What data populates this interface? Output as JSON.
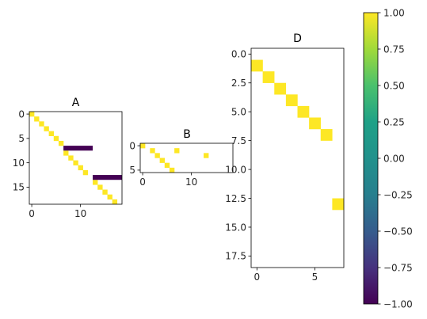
{
  "chart_data": [
    {
      "type": "heatmap",
      "title": "A",
      "nrows": 19,
      "ncols": 19,
      "value_range": [
        -1,
        1
      ],
      "cells": [
        {
          "row": 0,
          "col": 0,
          "value": 1
        },
        {
          "row": 1,
          "col": 1,
          "value": 1
        },
        {
          "row": 2,
          "col": 2,
          "value": 1
        },
        {
          "row": 3,
          "col": 3,
          "value": 1
        },
        {
          "row": 4,
          "col": 4,
          "value": 1
        },
        {
          "row": 5,
          "col": 5,
          "value": 1
        },
        {
          "row": 6,
          "col": 6,
          "value": 1
        },
        {
          "row": 8,
          "col": 7,
          "value": 1
        },
        {
          "row": 9,
          "col": 8,
          "value": 1
        },
        {
          "row": 10,
          "col": 9,
          "value": 1
        },
        {
          "row": 11,
          "col": 10,
          "value": 1
        },
        {
          "row": 12,
          "col": 11,
          "value": 1
        },
        {
          "row": 14,
          "col": 13,
          "value": 1
        },
        {
          "row": 15,
          "col": 14,
          "value": 1
        },
        {
          "row": 16,
          "col": 15,
          "value": 1
        },
        {
          "row": 17,
          "col": 16,
          "value": 1
        },
        {
          "row": 18,
          "col": 17,
          "value": 1
        }
      ],
      "bars": [
        {
          "row": 7,
          "col_start": 7,
          "col_end": 12,
          "value": -1
        },
        {
          "row": 13,
          "col_start": 13,
          "col_end": 18,
          "value": -1
        }
      ],
      "xticks": [
        0,
        10
      ],
      "yticks": [
        0,
        5,
        10,
        15
      ]
    },
    {
      "type": "heatmap",
      "title": "B",
      "nrows": 6,
      "ncols": 19,
      "value_range": [
        -1,
        1
      ],
      "cells": [
        {
          "row": 0,
          "col": 0,
          "value": 1
        },
        {
          "row": 1,
          "col": 2,
          "value": 1
        },
        {
          "row": 2,
          "col": 3,
          "value": 1
        },
        {
          "row": 3,
          "col": 4,
          "value": 1
        },
        {
          "row": 4,
          "col": 5,
          "value": 1
        },
        {
          "row": 5,
          "col": 6,
          "value": 1
        },
        {
          "row": 1,
          "col": 7,
          "value": 1
        },
        {
          "row": 2,
          "col": 13,
          "value": 1
        }
      ],
      "bars": [],
      "xticks": [
        0,
        10
      ],
      "yticks": [
        0,
        5
      ]
    },
    {
      "type": "heatmap",
      "title": "D",
      "nrows": 19,
      "ncols": 8,
      "value_range": [
        -1,
        1
      ],
      "cells": [
        {
          "row": 1,
          "col": 0,
          "value": 1
        },
        {
          "row": 2,
          "col": 1,
          "value": 1
        },
        {
          "row": 3,
          "col": 2,
          "value": 1
        },
        {
          "row": 4,
          "col": 3,
          "value": 1
        },
        {
          "row": 5,
          "col": 4,
          "value": 1
        },
        {
          "row": 6,
          "col": 5,
          "value": 1
        },
        {
          "row": 7,
          "col": 6,
          "value": 1
        },
        {
          "row": 13,
          "col": 7,
          "value": 1
        }
      ],
      "bars": [],
      "xticks": [
        0,
        5
      ],
      "yticks": [
        0.0,
        2.5,
        5.0,
        7.5,
        10.0,
        12.5,
        15.0,
        17.5
      ],
      "ytick_labels": [
        "0.0",
        "2.5",
        "5.0",
        "7.5",
        "10.0",
        "12.5",
        "15.0",
        "17.5"
      ]
    }
  ],
  "colorbar": {
    "colormap": "viridis",
    "range": [
      -1.0,
      1.0
    ],
    "ticks": [
      1.0,
      0.75,
      0.5,
      0.25,
      0.0,
      -0.25,
      -0.5,
      -0.75,
      -1.0
    ],
    "tick_labels": [
      "1.00",
      "0.75",
      "0.50",
      "0.25",
      "0.00",
      "−0.25",
      "−0.50",
      "−0.75",
      "−1.00"
    ]
  },
  "colors": {
    "high": "#fde725",
    "low": "#440154",
    "background": "#ffffff",
    "axis": "#000000"
  }
}
